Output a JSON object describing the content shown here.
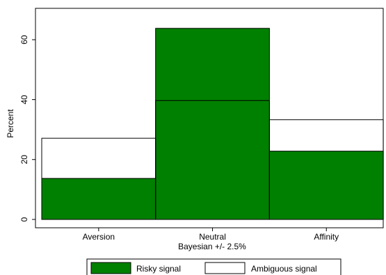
{
  "chart_data": {
    "type": "bar",
    "categories": [
      "Aversion",
      "Neutral",
      "Affinity"
    ],
    "series": [
      {
        "name": "Risky signal",
        "values": [
          13.7,
          63.8,
          22.8
        ],
        "fill": "#008000",
        "stroke": "#000000"
      },
      {
        "name": "Ambiguous signal",
        "values": [
          27.1,
          39.7,
          33.3
        ],
        "fill": "none",
        "stroke": "#000000"
      }
    ],
    "xlabel": "Bayesian +/- 2.5%",
    "ylabel": "Percent",
    "ylim": [
      0,
      67
    ],
    "yticks": [
      0,
      20,
      40,
      60
    ],
    "legend_position": "bottom",
    "grid": false
  }
}
